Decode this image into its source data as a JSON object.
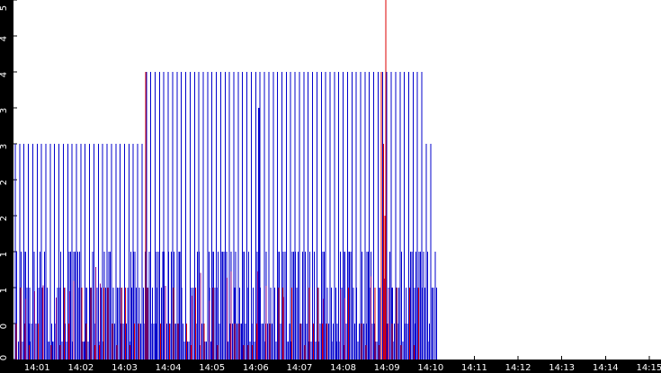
{
  "chart_data": {
    "type": "line",
    "title": "",
    "xlabel": "",
    "ylabel": "",
    "x_tick_labels": [
      "14:01",
      "14:02",
      "14:03",
      "14:04",
      "14:05",
      "14:06",
      "14:07",
      "14:08",
      "14:09",
      "14:10",
      "14:11",
      "14:12",
      "14:13",
      "14:14",
      "14:15"
    ],
    "x_tick_minutes": [
      1,
      2,
      3,
      4,
      5,
      6,
      7,
      8,
      9,
      10,
      11,
      12,
      13,
      14,
      15
    ],
    "xlim_minutes": [
      0.46,
      15.27
    ],
    "y_tick_labels": [
      "0",
      "0",
      "1",
      "1",
      "2",
      "2",
      "3",
      "3",
      "4",
      "4",
      "5"
    ],
    "y_tick_values": [
      0,
      0.5,
      1,
      1.5,
      2,
      2.5,
      3,
      3.5,
      4,
      4.5,
      5
    ],
    "ylim": [
      0,
      5
    ],
    "grid": false,
    "legend": "none",
    "colors": {
      "background": "#ffffff",
      "axis": "#000000",
      "blue_series": "#0000cc",
      "red_series": "#dd0000",
      "purple_overlap": "#880088",
      "tick_text": "#ffffff"
    },
    "series": [
      {
        "color": "#0000cc",
        "style": "vertical-impulses",
        "x_range_minutes": [
          0.5,
          10.0
        ],
        "spike_interval_minutes": 0.1,
        "low_levels": [
          0,
          0.5,
          1,
          1.5
        ],
        "spike_levels_before_1403_30": 3,
        "spike_levels_after_1403_30": 4,
        "final_spike_levels": 3
      },
      {
        "color": "#dd0000",
        "style": "vertical-impulses",
        "x_range_minutes": [
          0.5,
          10.0
        ],
        "low_levels": [
          0,
          0.5,
          1
        ],
        "special_spikes": [
          {
            "x_minutes": 3.48,
            "y": 4
          },
          {
            "x_minutes": 8.87,
            "y": 4
          },
          {
            "x_minutes": 8.98,
            "y": 5
          }
        ]
      }
    ]
  }
}
